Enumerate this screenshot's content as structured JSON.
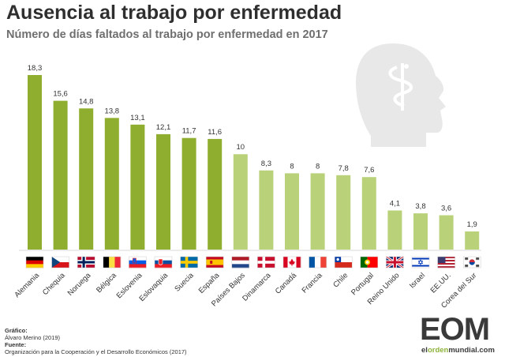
{
  "header": {
    "title": "Ausencia al trabajo por enfermedad",
    "subtitle": "Número de días faltados al trabajo por enfermedad en 2017"
  },
  "colors": {
    "bar_dark": "#8fae2f",
    "bar_light": "#b9d27a",
    "head_gray": "#e8e8e8",
    "brand_green": "#8db33b"
  },
  "chart_data": {
    "type": "bar",
    "title": "Ausencia al trabajo por enfermedad",
    "subtitle": "Número de días faltados al trabajo por enfermedad en 2017",
    "xlabel": "",
    "ylabel": "",
    "categories": [
      "Alemania",
      "Chequia",
      "Noruega",
      "Bélgica",
      "Eslovenia",
      "Eslovaquia",
      "Suecia",
      "España",
      "Países Bajos",
      "Dinamarca",
      "Canadá",
      "Francia",
      "Chile",
      "Portugal",
      "Reino Unido",
      "Israel",
      "EE.UU.",
      "Corea del Sur"
    ],
    "values": [
      18.3,
      15.6,
      14.8,
      13.8,
      13.1,
      12.1,
      11.7,
      11.6,
      10,
      8.3,
      8,
      8,
      7.8,
      7.6,
      4.1,
      3.8,
      3.6,
      1.9
    ],
    "value_labels": [
      "18,3",
      "15,6",
      "14,8",
      "13,8",
      "13,1",
      "12,1",
      "11,7",
      "11,6",
      "10",
      "8,3",
      "8",
      "8",
      "7,8",
      "7,6",
      "4,1",
      "3,8",
      "3,6",
      "1,9"
    ],
    "ylim": [
      0,
      18.3
    ],
    "grid": false,
    "legend": "none"
  },
  "flags": [
    "germany",
    "czechia",
    "norway",
    "belgium",
    "slovenia",
    "slovakia",
    "sweden",
    "spain",
    "netherlands",
    "denmark",
    "canada",
    "france",
    "chile",
    "portugal",
    "united-kingdom",
    "israel",
    "usa",
    "south-korea"
  ],
  "footer": {
    "grafico_label": "Gráfico:",
    "grafico_value": "Álvaro Merino (2019)",
    "fuente_label": "Fuente:",
    "fuente_value": "Organización para la Cooperación y el Desarrollo Económicos (2017)"
  },
  "logo": {
    "text": "EOM",
    "url_pre": "el",
    "url_mid": "orden",
    "url_post": "mundial.com"
  }
}
